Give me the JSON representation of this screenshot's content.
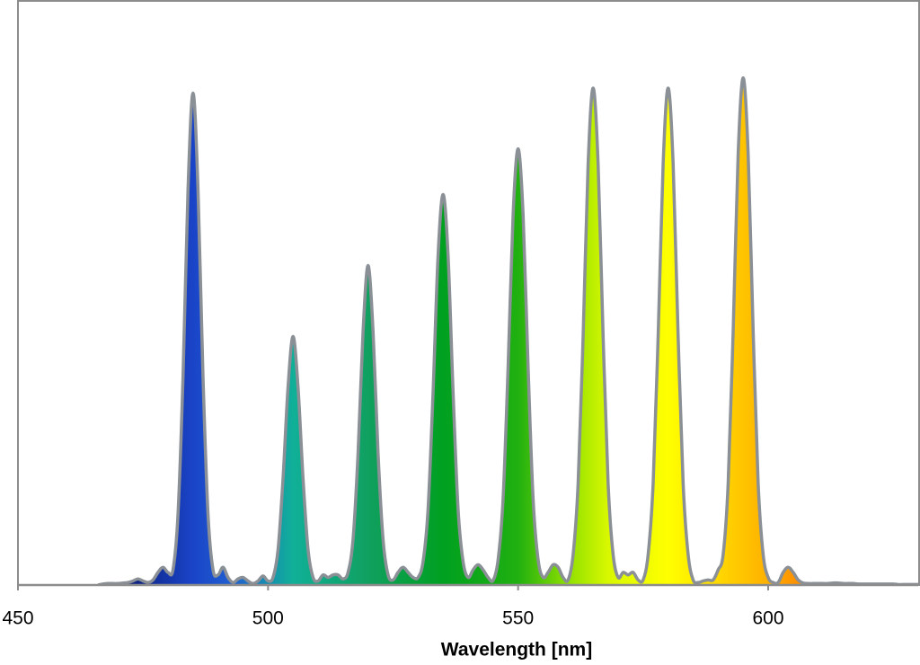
{
  "chart_data": {
    "type": "area",
    "x": [
      466,
      467,
      468,
      469,
      470,
      471,
      472,
      473,
      474,
      475,
      476,
      477,
      478,
      479,
      480,
      481,
      482,
      483,
      484,
      485,
      486,
      487,
      488,
      489,
      490,
      491,
      492,
      493,
      494,
      495,
      496,
      497,
      498,
      499,
      500,
      501,
      502,
      503,
      504,
      505,
      506,
      507,
      508,
      509,
      510,
      511,
      512,
      513,
      514,
      515,
      516,
      517,
      518,
      519,
      520,
      521,
      522,
      523,
      524,
      525,
      526,
      527,
      528,
      529,
      530,
      531,
      532,
      533,
      534,
      535,
      536,
      537,
      538,
      539,
      540,
      541,
      542,
      543,
      544,
      545,
      546,
      547,
      548,
      549,
      550,
      551,
      552,
      553,
      554,
      555,
      556,
      557,
      558,
      559,
      560,
      561,
      562,
      563,
      564,
      565,
      566,
      567,
      568,
      569,
      570,
      571,
      572,
      573,
      574,
      575,
      576,
      577,
      578,
      579,
      580,
      581,
      582,
      583,
      584,
      585,
      586,
      587,
      588,
      589,
      590,
      591,
      592,
      593,
      594,
      595,
      596,
      597,
      598,
      599,
      600,
      601,
      602,
      603,
      604,
      605,
      606,
      607,
      608,
      609,
      610,
      611,
      612,
      613,
      614,
      615,
      616,
      617,
      618,
      619,
      620,
      621,
      622,
      623,
      624,
      625,
      626,
      627,
      628,
      629,
      630
    ],
    "values": [
      0,
      0.2,
      0.3,
      0.3,
      0.3,
      0.4,
      0.5,
      0.8,
      1.2,
      0.8,
      0.5,
      1,
      2.5,
      3.5,
      2.5,
      3,
      14,
      41,
      78,
      97,
      78,
      41,
      14,
      3,
      2,
      3.5,
      1.5,
      0.5,
      1.2,
      1.5,
      0.8,
      0.3,
      0.8,
      1.8,
      0.8,
      1.5,
      7,
      21,
      39,
      49,
      39,
      21,
      7,
      1.5,
      0.8,
      2,
      1.5,
      2,
      2,
      1.2,
      2.5,
      9,
      26,
      50,
      63,
      50,
      26,
      9,
      2,
      1,
      2.5,
      3.5,
      2.5,
      1.5,
      1.5,
      4.6,
      15,
      38,
      65,
      77,
      65,
      38,
      15,
      4.6,
      1.5,
      3,
      4,
      3,
      1.5,
      0.9,
      5,
      17,
      43,
      73,
      86,
      73,
      43,
      17,
      5,
      1.5,
      2.5,
      4,
      3.5,
      1.5,
      1,
      6,
      20,
      49,
      83,
      98,
      83,
      49,
      20,
      6,
      1.5,
      2.5,
      2,
      2.5,
      1,
      1,
      6,
      20,
      49,
      83,
      98,
      83,
      49,
      20,
      6,
      1,
      0.5,
      0.8,
      1,
      1,
      3,
      6,
      20,
      50,
      85,
      100,
      85,
      50,
      20,
      6,
      1.5,
      0.5,
      0.5,
      2.5,
      3.5,
      2.5,
      1,
      0.4,
      0.3,
      0.3,
      0.3,
      0.3,
      0.3,
      0.4,
      0.4,
      0.3,
      0.3,
      0.3,
      0.2,
      0.2,
      0.2,
      0.2,
      0.2,
      0.2,
      0.2,
      0.2,
      0.1,
      0.1,
      0.1,
      0.1,
      0.1
    ],
    "xlim": [
      450,
      630
    ],
    "ylim": [
      0,
      115
    ],
    "xticks": [
      450,
      500,
      550,
      600
    ],
    "xlabel": "Wavelength [nm]",
    "line_color": "#8a9096",
    "frame_color": "#8c8c8c",
    "color_stops": [
      {
        "x": 470,
        "color": "#0a1a6e"
      },
      {
        "x": 485,
        "color": "#1a44c8"
      },
      {
        "x": 493,
        "color": "#2060d0"
      },
      {
        "x": 505,
        "color": "#10b098"
      },
      {
        "x": 520,
        "color": "#10a060"
      },
      {
        "x": 535,
        "color": "#00a020"
      },
      {
        "x": 550,
        "color": "#20b010"
      },
      {
        "x": 560,
        "color": "#90e000"
      },
      {
        "x": 568,
        "color": "#d8f800"
      },
      {
        "x": 580,
        "color": "#ffff00"
      },
      {
        "x": 590,
        "color": "#ffd800"
      },
      {
        "x": 600,
        "color": "#ffb000"
      },
      {
        "x": 606,
        "color": "#ff9000"
      }
    ]
  }
}
